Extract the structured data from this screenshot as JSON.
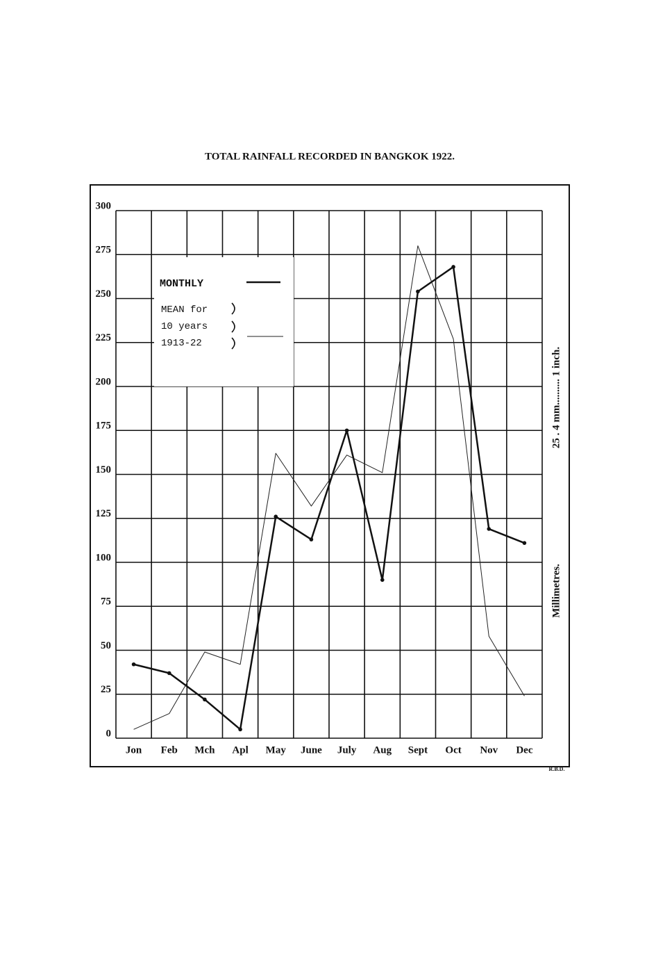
{
  "chart_data": {
    "type": "line",
    "title": "TOTAL RAINFALL RECORDED IN BANGKOK 1922.",
    "y_label": "Millimetres.",
    "y_label_note": "25 . 4 mm.......... 1 inch.",
    "signature": "R.B.D.",
    "categories": [
      "Jon",
      "Feb",
      "Mch",
      "Apl",
      "May",
      "June",
      "July",
      "Aug",
      "Sept",
      "Oct",
      "Nov",
      "Dec"
    ],
    "series": [
      {
        "name": "MONTHLY",
        "color": "#111111",
        "values": [
          42,
          37,
          22,
          5,
          126,
          113,
          175,
          90,
          254,
          268,
          119,
          111
        ]
      },
      {
        "name": "MEAN for 10 years 1913-22",
        "color": "#222222",
        "values": [
          5,
          14,
          49,
          42,
          162,
          132,
          161,
          151,
          280,
          227,
          58,
          24
        ]
      }
    ],
    "ylim": [
      0,
      300
    ],
    "yticks": [
      0,
      25,
      50,
      75,
      100,
      125,
      150,
      175,
      200,
      225,
      250,
      275,
      300
    ],
    "grid": true
  }
}
